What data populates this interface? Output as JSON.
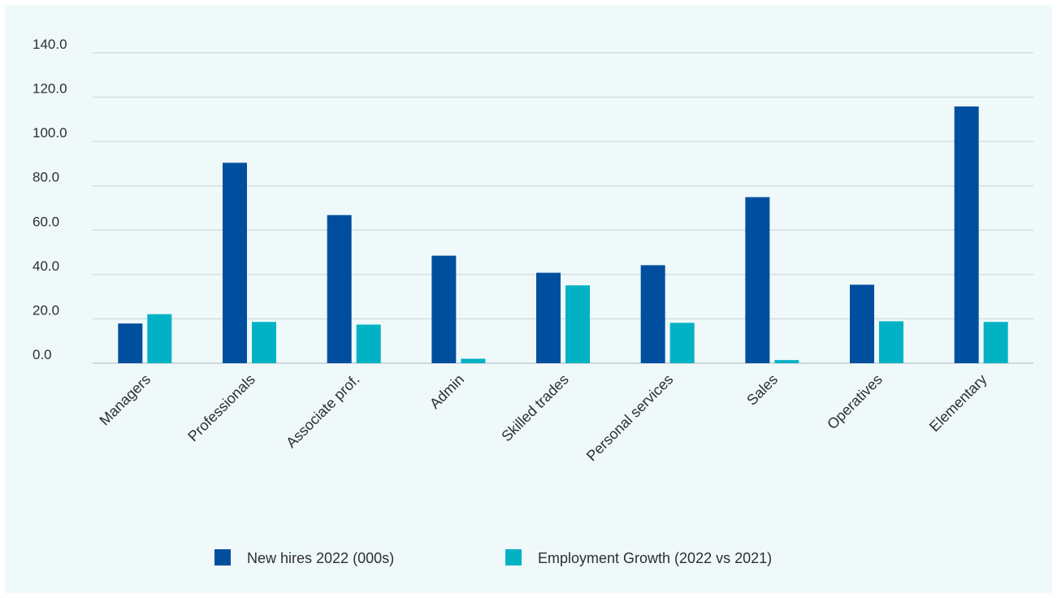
{
  "chart_data": {
    "type": "bar",
    "title": "",
    "xlabel": "",
    "ylabel": "",
    "ylim": [
      0,
      140
    ],
    "yticks": [
      "0.0",
      "20.0",
      "40.0",
      "60.0",
      "80.0",
      "100.0",
      "120.0",
      "140.0"
    ],
    "ytick_values": [
      0,
      20,
      40,
      60,
      80,
      100,
      120,
      140
    ],
    "grid": true,
    "legend_position": "bottom",
    "categories": [
      "Managers",
      "Professionals",
      "Associate prof.",
      "Admin",
      "Skilled trades",
      "Personal services",
      "Sales",
      "Operatives",
      "Elementary"
    ],
    "series": [
      {
        "name": "New hires 2022 (000s)",
        "color": "#004f9e",
        "values": [
          17.9,
          90.4,
          66.8,
          48.5,
          40.8,
          44.2,
          74.9,
          35.4,
          115.8
        ]
      },
      {
        "name": "Employment Growth (2022 vs 2021)",
        "color": "#00b2c4",
        "values": [
          22.1,
          18.6,
          17.4,
          2.0,
          35.1,
          18.2,
          1.4,
          18.9,
          18.6
        ]
      }
    ]
  }
}
